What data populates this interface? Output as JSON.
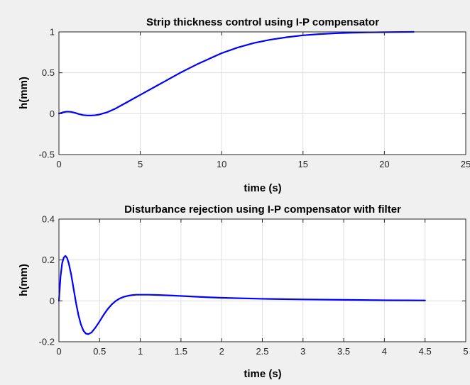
{
  "chart_data": [
    {
      "type": "line",
      "title": "Strip thickness control using I-P compensator",
      "xlabel": "time (s)",
      "ylabel": "h(mm)",
      "xlim": [
        0,
        25
      ],
      "ylim": [
        -0.5,
        1
      ],
      "xticks": [
        0,
        5,
        10,
        15,
        20,
        25
      ],
      "xtick_labels": [
        "0",
        "5",
        "10",
        "15",
        "20",
        "25"
      ],
      "yticks": [
        -0.5,
        0,
        0.5,
        1
      ],
      "ytick_labels": [
        "-0.5",
        "0",
        "0.5",
        "1"
      ],
      "grid": true,
      "series": [
        {
          "color": "#0000ff",
          "x": [
            0,
            0.25,
            0.5,
            0.75,
            1.0,
            1.25,
            1.5,
            1.75,
            2.0,
            2.25,
            2.5,
            3,
            3.5,
            4,
            4.5,
            5,
            5.5,
            6,
            6.5,
            7,
            7.5,
            8,
            8.5,
            9,
            9.5,
            10,
            11,
            12,
            13,
            14,
            15,
            16,
            17,
            18,
            19,
            20,
            21,
            21.8
          ],
          "y": [
            0,
            0.017,
            0.025,
            0.022,
            0.01,
            -0.006,
            -0.017,
            -0.022,
            -0.022,
            -0.018,
            -0.01,
            0.02,
            0.065,
            0.12,
            0.175,
            0.23,
            0.285,
            0.34,
            0.395,
            0.45,
            0.505,
            0.555,
            0.605,
            0.65,
            0.695,
            0.74,
            0.81,
            0.865,
            0.905,
            0.935,
            0.958,
            0.973,
            0.983,
            0.99,
            0.994,
            0.997,
            0.999,
            1.0
          ]
        }
      ]
    },
    {
      "type": "line",
      "title": "Disturbance rejection using I-P compensator with filter",
      "xlabel": "time (s)",
      "ylabel": "h(mm)",
      "xlim": [
        0,
        5
      ],
      "ylim": [
        -0.2,
        0.4
      ],
      "xticks": [
        0,
        0.5,
        1,
        1.5,
        2,
        2.5,
        3,
        3.5,
        4,
        4.5,
        5
      ],
      "xtick_labels": [
        "0",
        "0.5",
        "1",
        "1.5",
        "2",
        "2.5",
        "3",
        "3.5",
        "4",
        "4.5",
        "5"
      ],
      "yticks": [
        -0.2,
        0,
        0.2,
        0.4
      ],
      "ytick_labels": [
        "-0.2",
        "0",
        "0.2",
        "0.4"
      ],
      "grid": true,
      "series": [
        {
          "color": "#0000ff",
          "x": [
            0,
            0.02,
            0.04,
            0.06,
            0.08,
            0.1,
            0.12,
            0.15,
            0.18,
            0.21,
            0.24,
            0.27,
            0.3,
            0.33,
            0.36,
            0.4,
            0.45,
            0.5,
            0.55,
            0.6,
            0.65,
            0.7,
            0.75,
            0.8,
            0.85,
            0.9,
            0.95,
            1.0,
            1.1,
            1.2,
            1.4,
            1.6,
            1.8,
            2.0,
            2.5,
            3.0,
            3.5,
            4.0,
            4.5
          ],
          "y": [
            0,
            0.12,
            0.185,
            0.212,
            0.22,
            0.21,
            0.185,
            0.13,
            0.06,
            -0.01,
            -0.07,
            -0.115,
            -0.145,
            -0.16,
            -0.163,
            -0.155,
            -0.13,
            -0.1,
            -0.068,
            -0.04,
            -0.017,
            0.0,
            0.012,
            0.02,
            0.025,
            0.028,
            0.03,
            0.03,
            0.03,
            0.029,
            0.026,
            0.022,
            0.018,
            0.015,
            0.01,
            0.007,
            0.005,
            0.003,
            0.002
          ]
        }
      ]
    }
  ]
}
